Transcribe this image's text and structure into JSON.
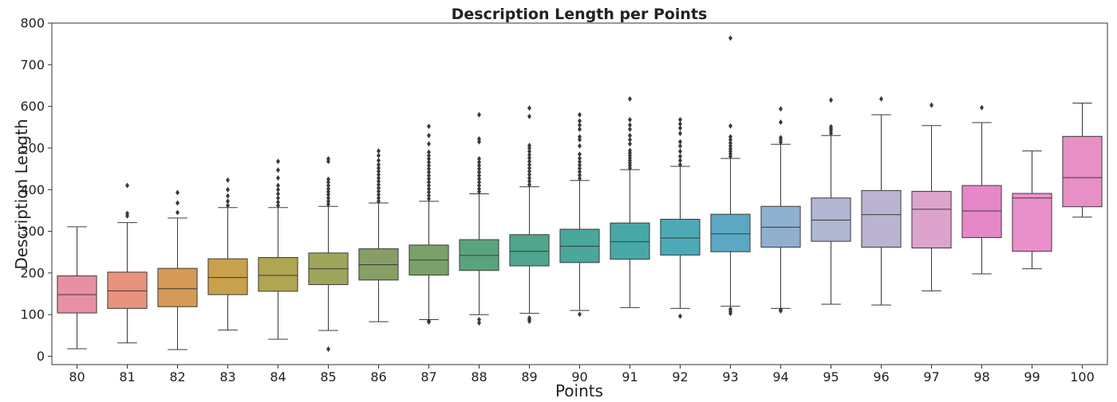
{
  "chart_data": {
    "type": "box",
    "title": "Description Length per Points",
    "xlabel": "Points",
    "ylabel": "Description Length",
    "ylim": [
      -20,
      800
    ],
    "yticks": [
      0,
      100,
      200,
      300,
      400,
      500,
      600,
      700,
      800
    ],
    "grid": false,
    "categories": [
      "80",
      "81",
      "82",
      "83",
      "84",
      "85",
      "86",
      "87",
      "88",
      "89",
      "90",
      "91",
      "92",
      "93",
      "94",
      "95",
      "96",
      "97",
      "98",
      "99",
      "100"
    ],
    "colors": [
      "#e88fa4",
      "#e8937b",
      "#d59a55",
      "#c9a04c",
      "#b0a552",
      "#9fa55a",
      "#879e65",
      "#7ca06a",
      "#5aa37e",
      "#4fa58e",
      "#4aa79b",
      "#48a8a8",
      "#4da9b6",
      "#5aa8c3",
      "#8fb0cf",
      "#b1b6d1",
      "#bbb3d2",
      "#dca4cc",
      "#e688c8",
      "#e990cb",
      "#e88fc5"
    ],
    "boxes": [
      {
        "q1": 104,
        "median": 148,
        "q3": 193,
        "whisker_low": 18,
        "whisker_high": 311,
        "outliers": []
      },
      {
        "q1": 115,
        "median": 157,
        "q3": 202,
        "whisker_low": 32,
        "whisker_high": 321,
        "outliers": [
          337,
          343,
          410
        ]
      },
      {
        "q1": 119,
        "median": 162,
        "q3": 211,
        "whisker_low": 16,
        "whisker_high": 332,
        "outliers": [
          345,
          368,
          393
        ]
      },
      {
        "q1": 148,
        "median": 189,
        "q3": 234,
        "whisker_low": 63,
        "whisker_high": 357,
        "outliers": [
          362,
          372,
          385,
          400,
          423
        ]
      },
      {
        "q1": 156,
        "median": 194,
        "q3": 237,
        "whisker_low": 41,
        "whisker_high": 357,
        "outliers": [
          362,
          370,
          380,
          390,
          400,
          410,
          428,
          447,
          468
        ]
      },
      {
        "q1": 172,
        "median": 210,
        "q3": 248,
        "whisker_low": 62,
        "whisker_high": 360,
        "outliers": [
          17,
          365,
          372,
          380,
          388,
          395,
          402,
          410,
          418,
          425,
          468,
          474
        ]
      },
      {
        "q1": 183,
        "median": 220,
        "q3": 258,
        "whisker_low": 83,
        "whisker_high": 368,
        "outliers": [
          372,
          380,
          388,
          396,
          404,
          412,
          420,
          428,
          436,
          444,
          452,
          460,
          470,
          482,
          493
        ]
      },
      {
        "q1": 195,
        "median": 231,
        "q3": 267,
        "whisker_low": 88,
        "whisker_high": 372,
        "outliers": [
          82,
          85,
          378,
          386,
          394,
          402,
          410,
          418,
          426,
          434,
          442,
          450,
          458,
          466,
          474,
          482,
          490,
          510,
          530,
          552
        ]
      },
      {
        "q1": 206,
        "median": 242,
        "q3": 280,
        "whisker_low": 100,
        "whisker_high": 390,
        "outliers": [
          80,
          88,
          395,
          402,
          410,
          418,
          426,
          434,
          442,
          450,
          458,
          466,
          474,
          515,
          522,
          580
        ]
      },
      {
        "q1": 217,
        "median": 252,
        "q3": 292,
        "whisker_low": 103,
        "whisker_high": 407,
        "outliers": [
          84,
          88,
          92,
          412,
          420,
          428,
          436,
          444,
          452,
          460,
          468,
          476,
          484,
          492,
          500,
          506,
          576,
          596
        ]
      },
      {
        "q1": 225,
        "median": 264,
        "q3": 305,
        "whisker_low": 110,
        "whisker_high": 422,
        "outliers": [
          101,
          427,
          435,
          443,
          451,
          459,
          467,
          475,
          485,
          505,
          520,
          527,
          545,
          555,
          565,
          580
        ]
      },
      {
        "q1": 233,
        "median": 275,
        "q3": 320,
        "whisker_low": 117,
        "whisker_high": 448,
        "outliers": [
          452,
          458,
          464,
          470,
          476,
          482,
          488,
          494,
          510,
          520,
          530,
          545,
          555,
          568,
          618
        ]
      },
      {
        "q1": 243,
        "median": 284,
        "q3": 329,
        "whisker_low": 115,
        "whisker_high": 456,
        "outliers": [
          96,
          460,
          470,
          480,
          492,
          505,
          515,
          535,
          548,
          558,
          568
        ]
      },
      {
        "q1": 251,
        "median": 294,
        "q3": 341,
        "whisker_low": 120,
        "whisker_high": 475,
        "outliers": [
          103,
          108,
          113,
          480,
          486,
          492,
          498,
          505,
          512,
          520,
          527,
          553,
          764
        ]
      },
      {
        "q1": 262,
        "median": 310,
        "q3": 360,
        "whisker_low": 115,
        "whisker_high": 509,
        "outliers": [
          109,
          112,
          514,
          520,
          525,
          562,
          594
        ]
      },
      {
        "q1": 276,
        "median": 327,
        "q3": 380,
        "whisker_low": 125,
        "whisker_high": 530,
        "outliers": [
          535,
          541,
          546,
          551,
          615
        ]
      },
      {
        "q1": 262,
        "median": 340,
        "q3": 398,
        "whisker_low": 123,
        "whisker_high": 580,
        "outliers": [
          618
        ]
      },
      {
        "q1": 260,
        "median": 353,
        "q3": 396,
        "whisker_low": 157,
        "whisker_high": 554,
        "outliers": [
          603
        ]
      },
      {
        "q1": 285,
        "median": 349,
        "q3": 410,
        "whisker_low": 198,
        "whisker_high": 561,
        "outliers": [
          597
        ]
      },
      {
        "q1": 252,
        "median": 380,
        "q3": 391,
        "whisker_low": 210,
        "whisker_high": 493,
        "outliers": []
      },
      {
        "q1": 359,
        "median": 429,
        "q3": 528,
        "whisker_low": 334,
        "whisker_high": 608,
        "outliers": []
      }
    ]
  }
}
